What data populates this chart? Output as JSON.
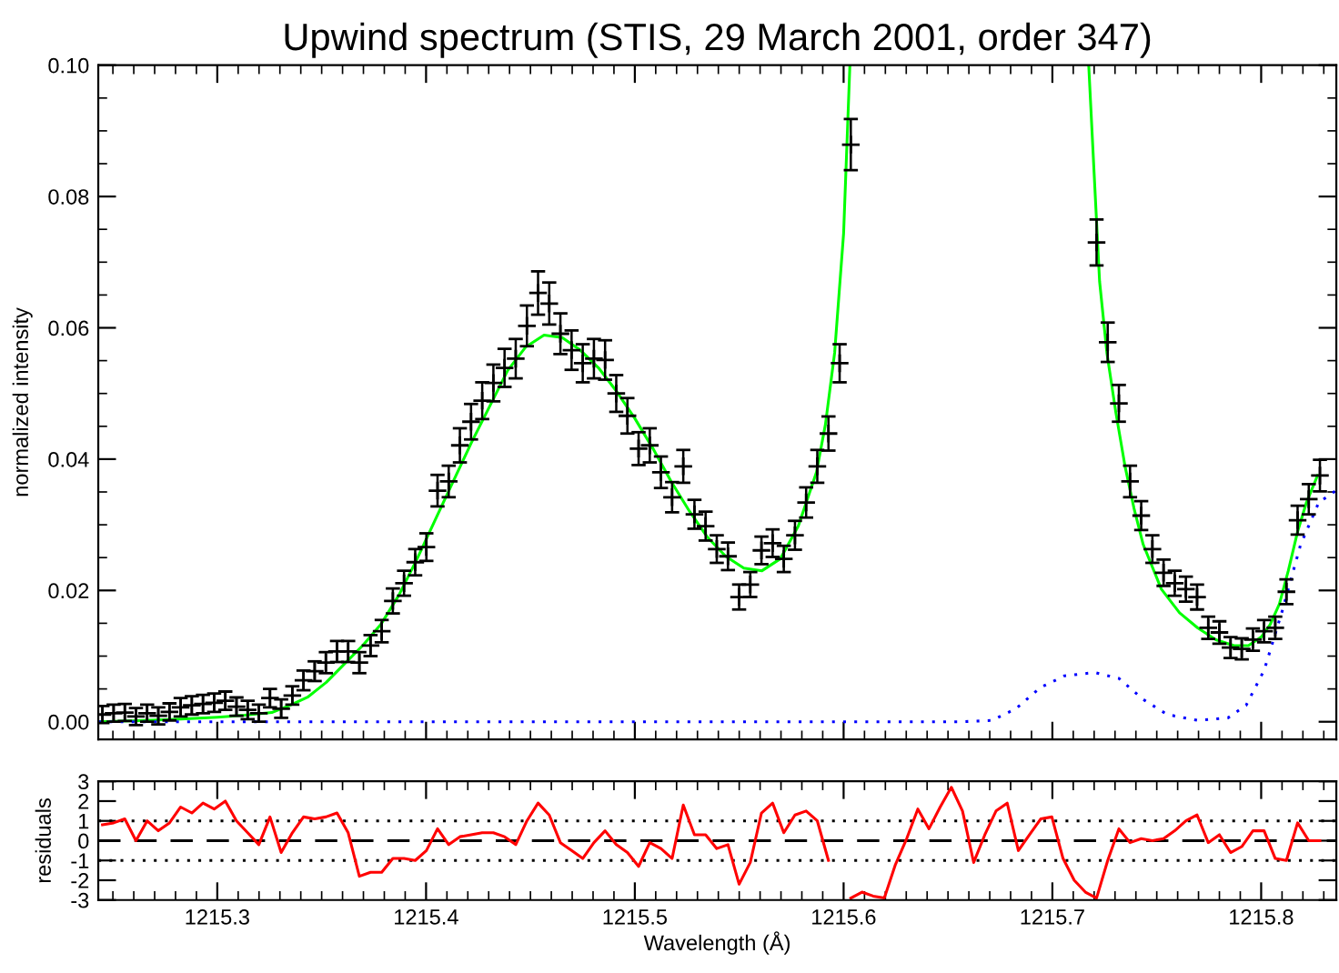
{
  "chart_data": [
    {
      "type": "scatter",
      "title": "Upwind spectrum (STIS, 29 March 2001, order 347)",
      "ylabel": "normalized intensity",
      "xlim": [
        1215.243,
        1215.836
      ],
      "ylim": [
        -0.0027,
        0.1
      ],
      "xticks": [
        1215.3,
        1215.4,
        1215.5,
        1215.6,
        1215.7,
        1215.8
      ],
      "yticks": [
        {
          "value": 0.0,
          "label": "0.00"
        },
        {
          "value": 0.02,
          "label": "0.02"
        },
        {
          "value": 0.04,
          "label": "0.04"
        },
        {
          "value": 0.06,
          "label": "0.06"
        },
        {
          "value": 0.08,
          "label": "0.08"
        },
        {
          "value": 0.1,
          "label": "0.10"
        }
      ],
      "tick_labels": "y",
      "x": [
        1215.245,
        1215.25035,
        1215.2557,
        1215.26105,
        1215.2664,
        1215.27175,
        1215.2771,
        1215.28245,
        1215.2878,
        1215.29315,
        1215.2985,
        1215.30385,
        1215.3092,
        1215.31455,
        1215.3199,
        1215.32525,
        1215.3306,
        1215.33595,
        1215.3413,
        1215.34665,
        1215.352,
        1215.35735,
        1215.3627,
        1215.36805,
        1215.3734,
        1215.37875,
        1215.3841,
        1215.38945,
        1215.3948,
        1215.40015,
        1215.4055,
        1215.41085,
        1215.4162,
        1215.42155,
        1215.4269,
        1215.43225,
        1215.4376,
        1215.44295,
        1215.4483,
        1215.45365,
        1215.459,
        1215.46435,
        1215.4697,
        1215.47505,
        1215.4804,
        1215.48575,
        1215.4911,
        1215.49645,
        1215.5018,
        1215.50715,
        1215.5125,
        1215.51785,
        1215.5232,
        1215.52855,
        1215.5339,
        1215.53925,
        1215.5446,
        1215.54995,
        1215.5553,
        1215.56065,
        1215.566,
        1215.57135,
        1215.5767,
        1215.58205,
        1215.5874,
        1215.59275,
        1215.5981,
        1215.60345,
        1215.6088,
        1215.61415,
        1215.6195,
        1215.62485,
        1215.6302,
        1215.63555,
        1215.6409,
        1215.64625,
        1215.6516,
        1215.65695,
        1215.6623,
        1215.66765,
        1215.673,
        1215.67835,
        1215.6837,
        1215.68905,
        1215.6944,
        1215.69975,
        1215.7051,
        1215.71045,
        1215.7158,
        1215.72115,
        1215.7265,
        1215.73185,
        1215.7372,
        1215.74255,
        1215.7479,
        1215.75325,
        1215.7586,
        1215.76395,
        1215.7693,
        1215.77465,
        1215.78,
        1215.78535,
        1215.7907,
        1215.79605,
        1215.8014,
        1215.80675,
        1215.8121,
        1215.81745,
        1215.8228,
        1215.82815
      ],
      "marker": "cross",
      "series": [
        {
          "type": "scatter",
          "color": "#000000",
          "values": [
            0.0011,
            0.0013,
            0.0014,
            0.0008,
            0.0013,
            0.0009,
            0.0015,
            0.0022,
            0.0025,
            0.0027,
            0.0029,
            0.0032,
            0.0023,
            0.0018,
            0.0013,
            0.0036,
            0.002,
            0.004,
            0.0063,
            0.0077,
            0.009,
            0.0107,
            0.0107,
            0.009,
            0.0116,
            0.0138,
            0.0184,
            0.0211,
            0.0243,
            0.0266,
            0.0352,
            0.0366,
            0.0421,
            0.0457,
            0.0489,
            0.0516,
            0.0539,
            0.0553,
            0.0603,
            0.0653,
            0.0637,
            0.0591,
            0.0566,
            0.0546,
            0.0553,
            0.0551,
            0.05,
            0.0466,
            0.0416,
            0.0421,
            0.038,
            0.0342,
            0.0389,
            0.0316,
            0.0298,
            0.0263,
            0.0252,
            0.019,
            0.0209,
            0.0261,
            0.0272,
            0.0248,
            0.0284,
            0.0334,
            0.0389,
            0.0439,
            0.0546,
            0.0879,
            null,
            null,
            null,
            null,
            null,
            null,
            null,
            null,
            null,
            null,
            null,
            null,
            null,
            null,
            null,
            null,
            null,
            null,
            null,
            null,
            null,
            0.073,
            0.0578,
            0.0485,
            0.0366,
            0.0314,
            0.0263,
            0.0227,
            0.0211,
            0.0202,
            0.019,
            0.0143,
            0.0136,
            0.0113,
            0.0111,
            0.0125,
            0.0138,
            0.0143,
            0.0198,
            0.0307,
            0.0339,
            0.0375
          ],
          "errors": [
            0.0013,
            0.0013,
            0.0013,
            0.0013,
            0.0013,
            0.0013,
            0.0013,
            0.0014,
            0.0014,
            0.0014,
            0.0014,
            0.0014,
            0.0014,
            0.0014,
            0.0013,
            0.0014,
            0.0014,
            0.0014,
            0.0015,
            0.0015,
            0.0016,
            0.0016,
            0.0016,
            0.0016,
            0.0016,
            0.0017,
            0.0019,
            0.0019,
            0.002,
            0.0021,
            0.0024,
            0.0024,
            0.0026,
            0.0027,
            0.0028,
            0.0028,
            0.0029,
            0.003,
            0.0031,
            0.0033,
            0.0032,
            0.0031,
            0.003,
            0.0029,
            0.003,
            0.003,
            0.0028,
            0.0027,
            0.0025,
            0.0026,
            0.0024,
            0.0023,
            0.0025,
            0.0022,
            0.0022,
            0.0021,
            0.0021,
            0.0019,
            0.0019,
            0.0021,
            0.0021,
            0.002,
            0.0022,
            0.0023,
            0.0025,
            0.0026,
            0.0029,
            0.0039,
            null,
            null,
            null,
            null,
            null,
            null,
            null,
            null,
            null,
            null,
            null,
            null,
            null,
            null,
            null,
            null,
            null,
            null,
            null,
            null,
            null,
            0.0035,
            0.003,
            0.0028,
            0.0024,
            0.0022,
            0.0021,
            0.002,
            0.0019,
            0.0019,
            0.0019,
            0.0017,
            0.0017,
            0.0016,
            0.0016,
            0.0017,
            0.0017,
            0.0017,
            0.0019,
            0.0022,
            0.0023,
            0.0024
          ]
        },
        {
          "type": "line",
          "color": "#00ff00",
          "marker": "none",
          "x": [
            1215.243,
            1215.2652,
            1215.2826,
            1215.3,
            1215.313,
            1215.3261,
            1215.3348,
            1215.3435,
            1215.3522,
            1215.3609,
            1215.3696,
            1215.3783,
            1215.387,
            1215.3957,
            1215.4043,
            1215.413,
            1215.4217,
            1215.4304,
            1215.4391,
            1215.4478,
            1215.4565,
            1215.4652,
            1215.4739,
            1215.4826,
            1215.4913,
            1215.5,
            1215.5087,
            1215.5174,
            1215.5261,
            1215.5348,
            1215.5435,
            1215.5522,
            1215.5609,
            1215.5696,
            1215.5783,
            1215.587,
            1215.5913,
            1215.5957,
            1215.6,
            1215.603,
            1215.66,
            1215.7174,
            1215.72,
            1215.7226,
            1215.7261,
            1215.7304,
            1215.7348,
            1215.7391,
            1215.7435,
            1215.7522,
            1215.7609,
            1215.7696,
            1215.7783,
            1215.787,
            1215.7939,
            1215.8,
            1215.8043,
            1215.8087,
            1215.813,
            1215.8174,
            1215.8217,
            1215.827
          ],
          "values": [
            0.0,
            0.0002,
            0.0004,
            0.0007,
            0.001,
            0.0014,
            0.0025,
            0.0038,
            0.006,
            0.0088,
            0.0116,
            0.0148,
            0.0193,
            0.0248,
            0.0307,
            0.0366,
            0.0425,
            0.048,
            0.0535,
            0.0571,
            0.0589,
            0.0585,
            0.0566,
            0.0539,
            0.0503,
            0.0462,
            0.0416,
            0.0366,
            0.0321,
            0.0281,
            0.0252,
            0.0234,
            0.023,
            0.0248,
            0.0298,
            0.038,
            0.0453,
            0.0562,
            0.0744,
            0.1,
            null,
            0.1,
            0.0835,
            0.0671,
            0.0562,
            0.0471,
            0.0389,
            0.0325,
            0.027,
            0.0202,
            0.0166,
            0.0143,
            0.0125,
            0.0116,
            0.0116,
            0.0129,
            0.0148,
            0.0179,
            0.023,
            0.0289,
            0.0334,
            0.0375
          ]
        },
        {
          "type": "line",
          "color": "#0000ff",
          "marker": "none",
          "line_style": "dotted",
          "x": [
            1215.243,
            1215.6565,
            1215.671,
            1215.6826,
            1215.6942,
            1215.7058,
            1215.7203,
            1215.7319,
            1215.7435,
            1215.755,
            1215.7696,
            1215.7841,
            1215.7928,
            1215.8015,
            1215.8102,
            1215.8189,
            1215.8276,
            1215.8357
          ],
          "values": [
            0.0,
            0.0,
            0.0002,
            0.002,
            0.0052,
            0.007,
            0.0075,
            0.0066,
            0.0034,
            0.0011,
            0.0002,
            0.0006,
            0.0025,
            0.0079,
            0.017,
            0.027,
            0.0334,
            0.0352
          ]
        }
      ]
    },
    {
      "type": "line",
      "xlabel": "Wavelength (Å)",
      "ylabel": "residuals",
      "xlim": [
        1215.243,
        1215.836
      ],
      "ylim": [
        -3,
        3
      ],
      "xticks": [
        1215.3,
        1215.4,
        1215.5,
        1215.6,
        1215.7,
        1215.8
      ],
      "yticks": [
        -3,
        -2,
        -1,
        0,
        1,
        2,
        3
      ],
      "x": [
        1215.245,
        1215.25035,
        1215.2557,
        1215.26105,
        1215.2664,
        1215.27175,
        1215.2771,
        1215.28245,
        1215.2878,
        1215.29315,
        1215.2985,
        1215.30385,
        1215.3092,
        1215.31455,
        1215.3199,
        1215.32525,
        1215.3306,
        1215.33595,
        1215.3413,
        1215.34665,
        1215.352,
        1215.35735,
        1215.3627,
        1215.36805,
        1215.3734,
        1215.37875,
        1215.3841,
        1215.38945,
        1215.3948,
        1215.40015,
        1215.4055,
        1215.41085,
        1215.4162,
        1215.42155,
        1215.4269,
        1215.43225,
        1215.4376,
        1215.44295,
        1215.4483,
        1215.45365,
        1215.459,
        1215.46435,
        1215.4697,
        1215.47505,
        1215.4804,
        1215.48575,
        1215.4911,
        1215.49645,
        1215.5018,
        1215.50715,
        1215.5125,
        1215.51785,
        1215.5232,
        1215.52855,
        1215.5339,
        1215.53925,
        1215.5446,
        1215.54995,
        1215.5553,
        1215.56065,
        1215.566,
        1215.57135,
        1215.5767,
        1215.58205,
        1215.5874,
        1215.59275,
        1215.5981,
        1215.60345,
        1215.6088,
        1215.61415,
        1215.6195,
        1215.62485,
        1215.6302,
        1215.63555,
        1215.6409,
        1215.64625,
        1215.6516,
        1215.65695,
        1215.6623,
        1215.66765,
        1215.673,
        1215.67835,
        1215.6837,
        1215.68905,
        1215.6944,
        1215.69975,
        1215.7051,
        1215.71045,
        1215.7158,
        1215.72115,
        1215.7265,
        1215.73185,
        1215.7372,
        1215.74255,
        1215.7479,
        1215.75325,
        1215.7586,
        1215.76395,
        1215.7693,
        1215.77465,
        1215.78,
        1215.78535,
        1215.7907,
        1215.79605,
        1215.8014,
        1215.80675,
        1215.8121,
        1215.81745,
        1215.8228,
        1215.82815
      ],
      "series": [
        {
          "color": "#ff0000",
          "values": [
            0.8,
            0.9,
            1.1,
            0.0,
            1.0,
            0.5,
            0.9,
            1.7,
            1.4,
            1.9,
            1.6,
            2.0,
            1.0,
            0.4,
            -0.2,
            1.2,
            -0.6,
            0.4,
            1.2,
            1.1,
            1.2,
            1.4,
            0.4,
            -1.8,
            -1.6,
            -1.6,
            -0.9,
            -0.9,
            -1.0,
            -0.5,
            0.6,
            -0.2,
            0.2,
            0.3,
            0.4,
            0.4,
            0.2,
            -0.2,
            1.0,
            1.9,
            1.3,
            -0.1,
            -0.5,
            -0.9,
            -0.1,
            0.5,
            -0.2,
            -0.6,
            -1.3,
            -0.1,
            -0.4,
            -0.9,
            1.8,
            0.3,
            0.3,
            -0.4,
            -0.2,
            -2.2,
            -1.1,
            1.4,
            1.9,
            0.4,
            1.3,
            1.5,
            1.0,
            -1.0,
            null,
            -2.9,
            -2.6,
            -2.8,
            -2.9,
            -1.2,
            0.1,
            1.6,
            0.6,
            1.7,
            2.7,
            1.5,
            -1.1,
            0.3,
            1.5,
            1.9,
            -0.5,
            0.3,
            1.1,
            1.2,
            -0.9,
            -2.0,
            -2.6,
            -2.9,
            -1.0,
            0.6,
            -0.1,
            0.1,
            0.0,
            0.1,
            0.5,
            1.0,
            1.3,
            -0.1,
            0.3,
            -0.6,
            -0.3,
            0.5,
            0.5,
            -0.9,
            -1.0,
            0.9,
            0.0,
            0.0
          ]
        }
      ],
      "ref_lines": [
        {
          "axis": "y",
          "value": 0,
          "line_style": "dashed",
          "color": "#000000"
        },
        {
          "axis": "y",
          "value": 1,
          "line_style": "dotted",
          "color": "#000000"
        },
        {
          "axis": "y",
          "value": -1,
          "line_style": "dotted",
          "color": "#000000"
        }
      ]
    }
  ]
}
